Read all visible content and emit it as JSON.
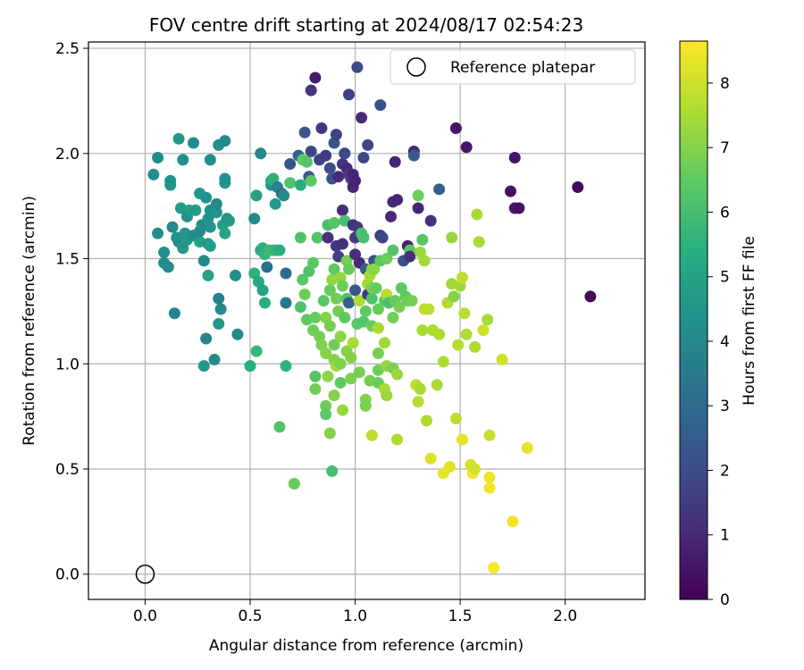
{
  "chart_data": {
    "type": "scatter",
    "title": "FOV centre drift starting at 2024/08/17 02:54:23",
    "xlabel": "Angular distance from reference (arcmin)",
    "ylabel": "Rotation from reference (arcmin)",
    "xlim": [
      -0.27,
      2.38
    ],
    "ylim": [
      -0.12,
      2.53
    ],
    "xticks": [
      0.0,
      0.5,
      1.0,
      1.5,
      2.0
    ],
    "xtick_labels": [
      "0.0",
      "0.5",
      "1.0",
      "1.5",
      "2.0"
    ],
    "yticks": [
      0.0,
      0.5,
      1.0,
      1.5,
      2.0,
      2.5
    ],
    "ytick_labels": [
      "0.0",
      "0.5",
      "1.0",
      "1.5",
      "2.0",
      "2.5"
    ],
    "grid": true,
    "legend": {
      "placement": "top-right",
      "entries": [
        "Reference platepar"
      ]
    },
    "reference_point": {
      "x": 0.0,
      "y": 0.0,
      "marker": "open-circle",
      "color": "#000000"
    },
    "colorbar": {
      "label": "Hours from first FF file",
      "range": [
        0,
        8.65
      ],
      "ticks": [
        0,
        1,
        2,
        3,
        4,
        5,
        6,
        7,
        8
      ],
      "tick_labels": [
        "0",
        "1",
        "2",
        "3",
        "4",
        "5",
        "6",
        "7",
        "8"
      ],
      "colormap": "viridis"
    },
    "points": [
      [
        0.04,
        1.9,
        4.2
      ],
      [
        0.06,
        1.98,
        4.1
      ],
      [
        0.06,
        1.62,
        4.3
      ],
      [
        0.09,
        1.53,
        4.3
      ],
      [
        0.09,
        1.48,
        4.2
      ],
      [
        0.11,
        1.46,
        4.2
      ],
      [
        0.12,
        1.85,
        4.5
      ],
      [
        0.12,
        1.87,
        4.4
      ],
      [
        0.13,
        1.65,
        4.1
      ],
      [
        0.14,
        1.24,
        3.8
      ],
      [
        0.15,
        1.6,
        4.4
      ],
      [
        0.16,
        2.07,
        4.6
      ],
      [
        0.16,
        1.58,
        4.3
      ],
      [
        0.17,
        1.74,
        4.7
      ],
      [
        0.18,
        1.55,
        4.5
      ],
      [
        0.18,
        1.97,
        4.2
      ],
      [
        0.19,
        1.62,
        4.5
      ],
      [
        0.2,
        1.59,
        4.6
      ],
      [
        0.2,
        1.7,
        4.2
      ],
      [
        0.21,
        1.73,
        4.8
      ],
      [
        0.23,
        1.61,
        4.2
      ],
      [
        0.23,
        2.05,
        4.1
      ],
      [
        0.24,
        1.73,
        4.7
      ],
      [
        0.26,
        1.81,
        4.6
      ],
      [
        0.26,
        1.58,
        4.9
      ],
      [
        0.26,
        1.63,
        4.0
      ],
      [
        0.27,
        1.66,
        4.2
      ],
      [
        0.28,
        1.49,
        4.1
      ],
      [
        0.28,
        0.99,
        4.6
      ],
      [
        0.29,
        1.79,
        4.4
      ],
      [
        0.29,
        1.12,
        3.9
      ],
      [
        0.3,
        1.69,
        4.4
      ],
      [
        0.3,
        1.57,
        4.4
      ],
      [
        0.3,
        1.42,
        5.0
      ],
      [
        0.31,
        1.97,
        4.3
      ],
      [
        0.31,
        1.73,
        4.3
      ],
      [
        0.31,
        1.65,
        4.4
      ],
      [
        0.31,
        1.56,
        4.8
      ],
      [
        0.33,
        1.02,
        4.1
      ],
      [
        0.34,
        1.72,
        4.5
      ],
      [
        0.34,
        1.76,
        4.0
      ],
      [
        0.35,
        1.31,
        3.8
      ],
      [
        0.35,
        1.19,
        4.6
      ],
      [
        0.35,
        2.04,
        4.2
      ],
      [
        0.36,
        1.26,
        4.0
      ],
      [
        0.37,
        1.66,
        4.8
      ],
      [
        0.38,
        2.06,
        4.1
      ],
      [
        0.38,
        1.86,
        4.4
      ],
      [
        0.38,
        1.88,
        4.3
      ],
      [
        0.38,
        1.62,
        5.0
      ],
      [
        0.39,
        1.69,
        4.3
      ],
      [
        0.4,
        1.68,
        4.7
      ],
      [
        0.43,
        1.42,
        4.3
      ],
      [
        0.44,
        1.14,
        4.1
      ],
      [
        0.5,
        0.99,
        5.4
      ],
      [
        0.52,
        1.43,
        5.5
      ],
      [
        0.52,
        1.69,
        4.1
      ],
      [
        0.53,
        1.8,
        4.9
      ],
      [
        0.53,
        1.06,
        5.7
      ],
      [
        0.54,
        1.39,
        5.2
      ],
      [
        0.55,
        1.54,
        5.4
      ],
      [
        0.55,
        2.0,
        4.0
      ],
      [
        0.56,
        1.35,
        5.0
      ],
      [
        0.56,
        1.55,
        5.4
      ],
      [
        0.57,
        1.29,
        5.4
      ],
      [
        0.57,
        1.52,
        5.7
      ],
      [
        0.58,
        1.46,
        3.2
      ],
      [
        0.59,
        1.54,
        5.8
      ],
      [
        0.6,
        1.85,
        4.3
      ],
      [
        0.6,
        1.87,
        5.0
      ],
      [
        0.61,
        1.54,
        5.8
      ],
      [
        0.61,
        1.88,
        5.5
      ],
      [
        0.62,
        1.54,
        5.7
      ],
      [
        0.62,
        1.76,
        4.7
      ],
      [
        0.63,
        1.84,
        3.8
      ],
      [
        0.64,
        1.54,
        5.4
      ],
      [
        0.64,
        0.7,
        6.2
      ],
      [
        0.65,
        1.81,
        3.0
      ],
      [
        0.66,
        1.8,
        4.1
      ],
      [
        0.67,
        1.29,
        3.5
      ],
      [
        0.67,
        1.43,
        2.9
      ],
      [
        0.67,
        0.99,
        5.6
      ],
      [
        0.69,
        1.86,
        6.2
      ],
      [
        0.69,
        1.95,
        2.3
      ],
      [
        0.71,
        0.43,
        6.6
      ],
      [
        0.73,
        1.99,
        2.7
      ],
      [
        0.74,
        1.6,
        6.2
      ],
      [
        0.74,
        1.85,
        5.4
      ],
      [
        0.74,
        1.27,
        6.2
      ],
      [
        0.75,
        1.97,
        6.5
      ],
      [
        0.75,
        1.4,
        6.4
      ],
      [
        0.76,
        2.1,
        2.3
      ],
      [
        0.76,
        1.33,
        6.7
      ],
      [
        0.77,
        1.96,
        6.3
      ],
      [
        0.77,
        1.21,
        6.4
      ],
      [
        0.78,
        1.44,
        6.2
      ],
      [
        0.78,
        1.89,
        2.4
      ],
      [
        0.79,
        1.87,
        6.4
      ],
      [
        0.79,
        2.3,
        1.3
      ],
      [
        0.79,
        2.01,
        1.8
      ],
      [
        0.8,
        1.48,
        6.4
      ],
      [
        0.8,
        1.16,
        6.7
      ],
      [
        0.81,
        2.36,
        0.7
      ],
      [
        0.81,
        1.22,
        6.6
      ],
      [
        0.81,
        0.88,
        6.8
      ],
      [
        0.81,
        0.94,
        6.3
      ],
      [
        0.82,
        1.6,
        6.3
      ],
      [
        0.83,
        1.13,
        6.8
      ],
      [
        0.83,
        1.97,
        1.7
      ],
      [
        0.84,
        1.09,
        6.9
      ],
      [
        0.84,
        2.12,
        1.4
      ],
      [
        0.85,
        1.3,
        6.4
      ],
      [
        0.86,
        1.99,
        1.5
      ],
      [
        0.86,
        1.05,
        7.0
      ],
      [
        0.86,
        1.22,
        7.0
      ],
      [
        0.86,
        0.8,
        6.7
      ],
      [
        0.86,
        0.76,
        6.4
      ],
      [
        0.87,
        0.94,
        7.1
      ],
      [
        0.87,
        1.66,
        6.0
      ],
      [
        0.87,
        1.6,
        1.2
      ],
      [
        0.88,
        1.93,
        2.0
      ],
      [
        0.88,
        0.67,
        7.0
      ],
      [
        0.88,
        1.18,
        6.8
      ],
      [
        0.88,
        1.35,
        6.6
      ],
      [
        0.89,
        0.49,
        6.0
      ],
      [
        0.89,
        1.4,
        7.2
      ],
      [
        0.89,
        1.88,
        2.2
      ],
      [
        0.9,
        1.67,
        6.3
      ],
      [
        0.9,
        2.05,
        2.3
      ],
      [
        0.9,
        1.45,
        6.5
      ],
      [
        0.9,
        1.09,
        6.7
      ],
      [
        0.9,
        1.02,
        7.0
      ],
      [
        0.9,
        0.85,
        7.0
      ],
      [
        0.91,
        2.09,
        1.7
      ],
      [
        0.91,
        0.99,
        7.4
      ],
      [
        0.91,
        1.31,
        6.7
      ],
      [
        0.91,
        1.56,
        1.4
      ],
      [
        0.92,
        1.89,
        1.0
      ],
      [
        0.92,
        1.51,
        1.6
      ],
      [
        0.92,
        1.25,
        6.8
      ],
      [
        0.93,
        1.41,
        7.2
      ],
      [
        0.93,
        1.13,
        7.1
      ],
      [
        0.93,
        1.0,
        6.9
      ],
      [
        0.93,
        0.91,
        6.5
      ],
      [
        0.94,
        1.95,
        1.4
      ],
      [
        0.94,
        1.73,
        1.1
      ],
      [
        0.94,
        1.57,
        1.2
      ],
      [
        0.94,
        1.37,
        6.7
      ],
      [
        0.94,
        0.78,
        7.3
      ],
      [
        0.95,
        1.22,
        6.5
      ],
      [
        0.95,
        2.0,
        1.7
      ],
      [
        0.95,
        1.68,
        6.1
      ],
      [
        0.95,
        2.0,
        1.9
      ],
      [
        0.96,
        1.93,
        1.0
      ],
      [
        0.96,
        1.49,
        6.8
      ],
      [
        0.96,
        1.31,
        6.2
      ],
      [
        0.96,
        1.06,
        7.0
      ],
      [
        0.97,
        2.28,
        1.7
      ],
      [
        0.97,
        1.9,
        1.7
      ],
      [
        0.97,
        1.45,
        6.6
      ],
      [
        0.97,
        1.29,
        2.7
      ],
      [
        0.98,
        1.88,
        1.6
      ],
      [
        0.98,
        1.03,
        7.0
      ],
      [
        0.98,
        0.93,
        6.9
      ],
      [
        0.99,
        1.66,
        1.3
      ],
      [
        0.99,
        1.9,
        0.9
      ],
      [
        0.99,
        1.84,
        0.9
      ],
      [
        0.99,
        1.1,
        7.5
      ],
      [
        1.0,
        1.87,
        0.8
      ],
      [
        1.0,
        1.52,
        1.2
      ],
      [
        1.0,
        1.35,
        2.3
      ],
      [
        1.0,
        1.6,
        1.5
      ],
      [
        1.01,
        2.41,
        2.0
      ],
      [
        1.01,
        1.65,
        1.4
      ],
      [
        1.01,
        1.19,
        6.4
      ],
      [
        1.02,
        1.48,
        1.0
      ],
      [
        1.02,
        0.96,
        6.8
      ],
      [
        1.02,
        1.3,
        7.6
      ],
      [
        1.03,
        2.17,
        1.0
      ],
      [
        1.03,
        1.62,
        6.1
      ],
      [
        1.04,
        1.6,
        6.1
      ],
      [
        1.04,
        1.98,
        1.8
      ],
      [
        1.04,
        1.2,
        6.3
      ],
      [
        1.05,
        1.25,
        6.5
      ],
      [
        1.05,
        1.45,
        2.6
      ],
      [
        1.05,
        0.83,
        7.0
      ],
      [
        1.05,
        0.8,
        6.9
      ],
      [
        1.06,
        2.04,
        1.8
      ],
      [
        1.06,
        1.38,
        7.4
      ],
      [
        1.06,
        1.33,
        1.6
      ],
      [
        1.07,
        1.42,
        7.5
      ],
      [
        1.07,
        0.92,
        6.8
      ],
      [
        1.08,
        1.45,
        7.2
      ],
      [
        1.08,
        1.36,
        6.9
      ],
      [
        1.08,
        1.31,
        6.2
      ],
      [
        1.08,
        1.18,
        6.7
      ],
      [
        1.08,
        0.66,
        7.7
      ],
      [
        1.09,
        1.49,
        2.1
      ],
      [
        1.09,
        1.45,
        7.1
      ],
      [
        1.1,
        1.36,
        6.6
      ],
      [
        1.11,
        1.26,
        6.6
      ],
      [
        1.11,
        1.05,
        6.8
      ],
      [
        1.11,
        0.97,
        6.7
      ],
      [
        1.11,
        0.91,
        6.6
      ],
      [
        1.11,
        1.17,
        7.5
      ],
      [
        1.12,
        2.23,
        2.1
      ],
      [
        1.12,
        1.49,
        6.4
      ],
      [
        1.12,
        1.61,
        1.5
      ],
      [
        1.13,
        1.6,
        1.8
      ],
      [
        1.14,
        1.3,
        6.5
      ],
      [
        1.14,
        1.1,
        7.4
      ],
      [
        1.14,
        0.88,
        7.5
      ],
      [
        1.15,
        1.33,
        7.7
      ],
      [
        1.15,
        1.5,
        6.7
      ],
      [
        1.15,
        0.85,
        7.3
      ],
      [
        1.15,
        0.99,
        7.2
      ],
      [
        1.16,
        1.29,
        6.1
      ],
      [
        1.17,
        1.7,
        1.0
      ],
      [
        1.18,
        1.77,
        1.0
      ],
      [
        1.18,
        1.22,
        6.7
      ],
      [
        1.18,
        0.98,
        6.9
      ],
      [
        1.18,
        1.54,
        6.3
      ],
      [
        1.19,
        1.96,
        0.9
      ],
      [
        1.19,
        1.3,
        6.6
      ],
      [
        1.2,
        1.78,
        0.9
      ],
      [
        1.2,
        0.95,
        7.3
      ],
      [
        1.2,
        0.64,
        7.6
      ],
      [
        1.21,
        1.27,
        6.8
      ],
      [
        1.22,
        1.36,
        6.5
      ],
      [
        1.23,
        1.49,
        2.3
      ],
      [
        1.24,
        1.32,
        6.4
      ],
      [
        1.25,
        1.3,
        6.7
      ],
      [
        1.25,
        1.56,
        0.7
      ],
      [
        1.26,
        1.54,
        6.3
      ],
      [
        1.26,
        1.51,
        1.2
      ],
      [
        1.27,
        1.3,
        6.8
      ],
      [
        1.28,
        2.01,
        1.0
      ],
      [
        1.28,
        1.99,
        2.5
      ],
      [
        1.29,
        0.9,
        7.7
      ],
      [
        1.3,
        1.8,
        6.7
      ],
      [
        1.3,
        0.82,
        7.7
      ],
      [
        1.3,
        1.74,
        0.9
      ],
      [
        1.31,
        0.88,
        7.5
      ],
      [
        1.31,
        1.53,
        7.3
      ],
      [
        1.32,
        1.16,
        7.5
      ],
      [
        1.32,
        1.59,
        6.3
      ],
      [
        1.33,
        1.26,
        7.8
      ],
      [
        1.33,
        1.49,
        7.4
      ],
      [
        1.34,
        0.73,
        7.6
      ],
      [
        1.35,
        1.26,
        7.7
      ],
      [
        1.36,
        0.55,
        8.2
      ],
      [
        1.36,
        1.68,
        1.2
      ],
      [
        1.37,
        1.16,
        7.6
      ],
      [
        1.39,
        0.9,
        7.5
      ],
      [
        1.4,
        1.83,
        2.6
      ],
      [
        1.4,
        1.14,
        7.6
      ],
      [
        1.42,
        0.48,
        8.3
      ],
      [
        1.42,
        1.01,
        7.6
      ],
      [
        1.44,
        1.29,
        7.6
      ],
      [
        1.45,
        0.51,
        8.3
      ],
      [
        1.46,
        1.38,
        7.4
      ],
      [
        1.46,
        1.6,
        7.3
      ],
      [
        1.47,
        1.32,
        7.0
      ],
      [
        1.48,
        2.12,
        0.5
      ],
      [
        1.48,
        0.74,
        7.8
      ],
      [
        1.49,
        1.09,
        7.7
      ],
      [
        1.5,
        1.37,
        7.4
      ],
      [
        1.51,
        1.41,
        7.8
      ],
      [
        1.51,
        0.64,
        8.3
      ],
      [
        1.52,
        1.24,
        7.7
      ],
      [
        1.53,
        1.14,
        7.6
      ],
      [
        1.53,
        2.03,
        0.5
      ],
      [
        1.55,
        0.52,
        8.1
      ],
      [
        1.56,
        0.48,
        8.5
      ],
      [
        1.57,
        1.08,
        7.6
      ],
      [
        1.57,
        0.5,
        8.1
      ],
      [
        1.58,
        1.71,
        7.5
      ],
      [
        1.59,
        1.58,
        7.5
      ],
      [
        1.61,
        1.16,
        8.0
      ],
      [
        1.63,
        1.21,
        7.5
      ],
      [
        1.64,
        0.46,
        8.4
      ],
      [
        1.64,
        0.41,
        8.5
      ],
      [
        1.64,
        0.66,
        7.9
      ],
      [
        1.66,
        0.03,
        8.6
      ],
      [
        1.7,
        1.02,
        8.0
      ],
      [
        1.74,
        1.82,
        0.4
      ],
      [
        1.75,
        0.25,
        8.5
      ],
      [
        1.76,
        1.74,
        0.6
      ],
      [
        1.76,
        1.98,
        0.5
      ],
      [
        1.78,
        1.74,
        0.4
      ],
      [
        1.82,
        0.6,
        8.3
      ],
      [
        2.06,
        1.84,
        0.2
      ],
      [
        2.12,
        1.32,
        0.2
      ]
    ]
  }
}
